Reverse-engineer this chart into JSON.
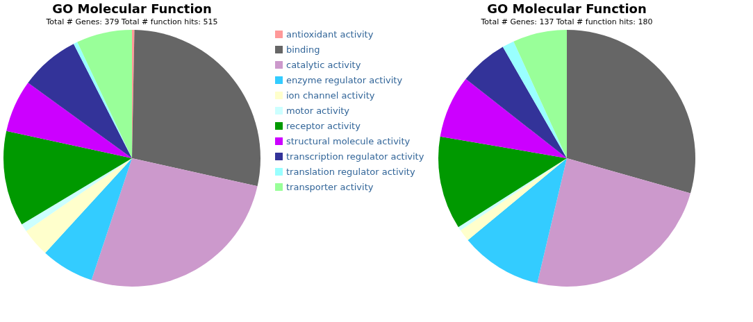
{
  "chart_data": [
    {
      "type": "pie",
      "title": "GO Molecular Function",
      "subtitle": "Total # Genes: 379    Total # function hits: 515",
      "legend": "right",
      "categories": [
        "antioxidant activity",
        "binding",
        "catalytic activity",
        "enzyme regulator activity",
        "ion channel activity",
        "motor activity",
        "receptor activity",
        "structural molecule activity",
        "transcription regulator activity",
        "translation regulator activity",
        "transporter activity"
      ],
      "values": [
        0.3,
        28.2,
        26.6,
        6.7,
        3.6,
        1.0,
        12.0,
        6.6,
        7.5,
        0.5,
        7.0
      ],
      "colors": [
        "#ff9999",
        "#666666",
        "#cc99cc",
        "#33ccff",
        "#ffffcc",
        "#ccffff",
        "#009900",
        "#cc00ff",
        "#333399",
        "#99ffff",
        "#99ff99"
      ]
    },
    {
      "type": "pie",
      "title": "GO Molecular Function",
      "subtitle": "Total # Genes: 137    Total # function hits: 180",
      "legend": false,
      "categories": [
        null,
        null,
        null,
        null,
        null,
        null,
        null,
        null,
        null,
        null,
        null
      ],
      "values": [
        0,
        29.4,
        24.3,
        10.3,
        1.5,
        0.5,
        11.7,
        7.9,
        6.1,
        1.5,
        6.8
      ],
      "colors": [
        "#ff9999",
        "#666666",
        "#cc99cc",
        "#33ccff",
        "#ffffcc",
        "#ccffff",
        "#009900",
        "#cc00ff",
        "#333399",
        "#99ffff",
        "#99ff99"
      ]
    }
  ]
}
